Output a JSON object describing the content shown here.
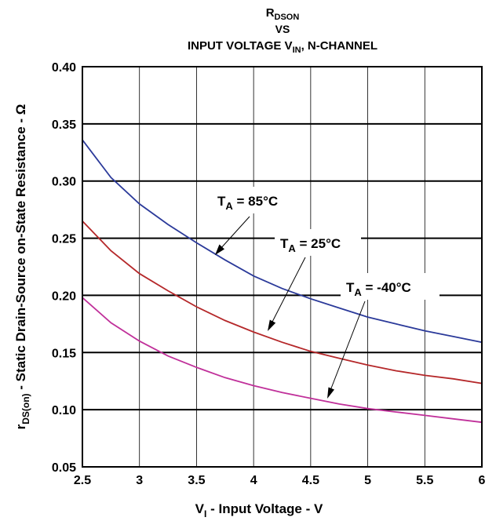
{
  "chart_data": {
    "type": "line",
    "title": {
      "line1": {
        "main": "R",
        "sub": "DSON"
      },
      "line2": "VS",
      "line3": {
        "pre": "INPUT VOLTAGE V",
        "sub": "IN",
        "post": ", N-CHANNEL"
      }
    },
    "xlabel": {
      "pre": "V",
      "sub": "I",
      "post": " - Input Voltage - V"
    },
    "ylabel": {
      "pre": "r",
      "sub": "DS(on)",
      "post": " - Static Drain-Source on-State Resistance - Ω"
    },
    "xlim": [
      2.5,
      6
    ],
    "ylim": [
      0.05,
      0.4
    ],
    "x_ticks": [
      2.5,
      3,
      3.5,
      4,
      4.5,
      5,
      5.5,
      6
    ],
    "x_tick_labels": [
      "2.5",
      "3",
      "3.5",
      "4",
      "4.5",
      "5",
      "5.5",
      "6"
    ],
    "y_ticks": [
      0.05,
      0.1,
      0.15,
      0.2,
      0.25,
      0.3,
      0.35,
      0.4
    ],
    "y_tick_labels": [
      "0.05",
      "0.10",
      "0.15",
      "0.20",
      "0.25",
      "0.30",
      "0.35",
      "0.40"
    ],
    "grid": true,
    "x": [
      2.5,
      2.75,
      3,
      3.25,
      3.5,
      3.75,
      4,
      4.25,
      4.5,
      4.75,
      5,
      5.25,
      5.5,
      5.75,
      6
    ],
    "series": [
      {
        "name": {
          "pre": "T",
          "sub": "A",
          "post": " = 85°C"
        },
        "color": "#2b3a9a",
        "values": [
          0.336,
          0.303,
          0.28,
          0.262,
          0.246,
          0.231,
          0.217,
          0.206,
          0.197,
          0.189,
          0.181,
          0.175,
          0.169,
          0.164,
          0.159
        ]
      },
      {
        "name": {
          "pre": "T",
          "sub": "A",
          "post": " = 25°C"
        },
        "color": "#b5282a",
        "values": [
          0.265,
          0.239,
          0.219,
          0.204,
          0.19,
          0.178,
          0.168,
          0.159,
          0.151,
          0.145,
          0.139,
          0.134,
          0.13,
          0.127,
          0.123
        ]
      },
      {
        "name": {
          "pre": "T",
          "sub": "A",
          "post": " = -40°C"
        },
        "color": "#c0309a",
        "values": [
          0.198,
          0.176,
          0.16,
          0.147,
          0.137,
          0.128,
          0.121,
          0.115,
          0.11,
          0.105,
          0.101,
          0.098,
          0.095,
          0.092,
          0.089
        ]
      }
    ]
  }
}
